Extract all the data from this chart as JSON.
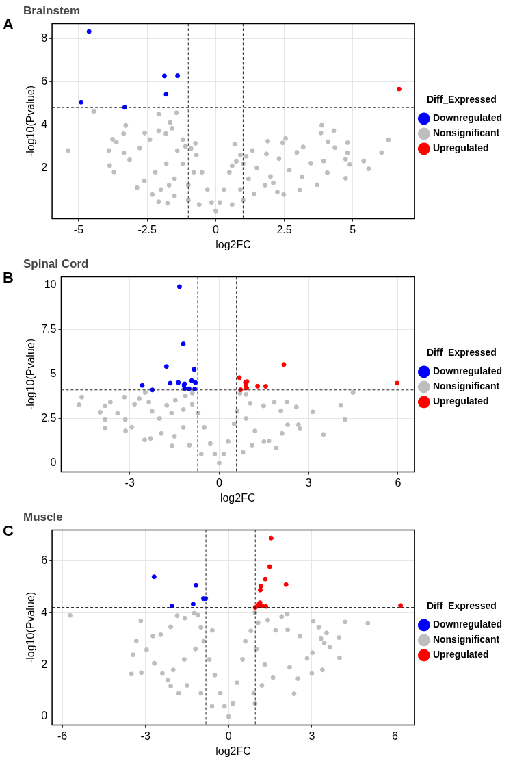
{
  "chart_data": [
    {
      "type": "scatter",
      "title": "Brainstem",
      "annotations": [
        "A"
      ],
      "xlabel": "log2FC",
      "ylabel": "-log10(Pvalue)",
      "legend_title": "Diff_Expressed",
      "legend": "right",
      "grid": true,
      "marker": "circle",
      "xlim": [
        -5.97,
        7.25
      ],
      "ylim": [
        -0.36,
        8.7
      ],
      "xticks": [
        -5,
        -2.5,
        0,
        2.5,
        5
      ],
      "yticks": [
        2,
        4,
        6,
        8
      ],
      "ref_lines": [
        {
          "axis": "x",
          "value": -1,
          "line_style": "dashed"
        },
        {
          "axis": "x",
          "value": 1,
          "line_style": "dashed"
        },
        {
          "axis": "y",
          "value": 4.8,
          "line_style": "dashed"
        }
      ],
      "series": [
        {
          "name": "Downregulated",
          "color": "#0000ff",
          "x": [
            -4.62,
            -4.91,
            -1.87,
            -1.39,
            -1.81,
            -3.32
          ],
          "values": [
            8.33,
            5.05,
            6.27,
            6.28,
            5.41,
            4.81
          ]
        },
        {
          "name": "Nonsignificant",
          "color": "#bebebe",
          "x": [
            -5.38,
            -4.45,
            -3.76,
            -3.62,
            -3.9,
            -3.87,
            -3.71,
            -3.28,
            -3.36,
            -3.35,
            -3.14,
            -2.77,
            -2.59,
            -2.4,
            -2.08,
            -1.43,
            -1.66,
            -1.59,
            -2.08,
            -1.82,
            -1.2,
            -0.74,
            -2.87,
            -2.31,
            -2.08,
            -1.76,
            -2.6,
            -2.2,
            -1.8,
            -1.4,
            -1.1,
            -0.9,
            -0.7,
            -0.5,
            -0.3,
            -0.15,
            0,
            -1.5,
            -1,
            -2,
            -1.5,
            -1,
            -0.6,
            -0.8,
            -1.2,
            -1.7,
            0.15,
            0.3,
            0.5,
            0.6,
            0.75,
            0.69,
            0.9,
            3.87,
            4.31,
            3.84,
            4.1,
            4.81,
            6.3,
            2.55,
            1.9,
            2.44,
            3.19,
            2.96,
            4.35,
            4.81,
            6.05,
            5.4,
            5.58,
            4.74,
            4.89,
            3.94,
            3.47,
            4.07,
            4.74,
            3.7,
            3.06,
            2.48,
            2.25,
            3.15,
            2.69,
            2.31,
            1.85,
            1.34,
            1.11,
            1.5,
            2.0,
            1.0,
            1.2,
            1.8,
            0.9,
            1.4,
            2.1,
            1.0,
            0.6
          ],
          "values": [
            2.81,
            4.62,
            3.33,
            3.19,
            2.81,
            2.11,
            1.81,
            3.97,
            3.59,
            2.7,
            2.38,
            2.92,
            3.62,
            3.32,
            4.49,
            4.56,
            4.11,
            3.84,
            3.73,
            3.59,
            3.32,
            3.14,
            1.08,
            0.76,
            0.43,
            0.36,
            1.4,
            1.8,
            2.2,
            2.8,
            3.0,
            2.9,
            2.6,
            1.8,
            1.0,
            0.4,
            0,
            1.5,
            1.2,
            1.0,
            0.7,
            0.5,
            0.3,
            1.8,
            2.2,
            1.2,
            0.4,
            1.0,
            1.8,
            2.1,
            2.3,
            3.1,
            2.6,
            3.98,
            3.73,
            3.62,
            3.22,
            3.17,
            3.31,
            3.37,
            3.24,
            3.16,
            2.97,
            2.72,
            2.94,
            2.7,
            2.71,
            2.32,
            1.96,
            2.41,
            2.16,
            2.32,
            2.22,
            1.78,
            1.52,
            1.22,
            0.97,
            0.76,
            0.88,
            1.59,
            1.89,
            2.43,
            2.65,
            2.81,
            2.54,
            2.0,
            1.6,
            2.2,
            1.5,
            1.2,
            1.0,
            0.8,
            1.3,
            0.5,
            0.3
          ]
        },
        {
          "name": "Upregulated",
          "color": "#ff0000",
          "x": [
            6.69
          ],
          "values": [
            5.66
          ]
        }
      ]
    },
    {
      "type": "scatter",
      "title": "Spinal Cord",
      "annotations": [
        "B"
      ],
      "xlabel": "log2FC",
      "ylabel": "-log10(Pvalue)",
      "legend_title": "Diff_Expressed",
      "legend": "right",
      "grid": true,
      "marker": "circle",
      "xlim": [
        -5.3,
        6.55
      ],
      "ylim": [
        -0.5,
        10.45
      ],
      "xticks": [
        -3,
        0,
        3,
        6
      ],
      "yticks": [
        0,
        2.5,
        5,
        7.5,
        10
      ],
      "ref_lines": [
        {
          "axis": "x",
          "value": -0.72,
          "line_style": "dashed"
        },
        {
          "axis": "x",
          "value": 0.58,
          "line_style": "dashed"
        },
        {
          "axis": "y",
          "value": 4.1,
          "line_style": "dashed"
        }
      ],
      "series": [
        {
          "name": "Downregulated",
          "color": "#0000ff",
          "x": [
            -1.33,
            -1.2,
            -1.77,
            -0.84,
            -2.58,
            -2.24,
            -1.64,
            -1.37,
            -1.16,
            -1.18,
            -0.92,
            -0.8,
            -1.16,
            -1.01,
            -0.82
          ],
          "values": [
            9.89,
            6.68,
            5.41,
            5.25,
            4.35,
            4.1,
            4.48,
            4.51,
            4.44,
            4.37,
            4.62,
            4.51,
            4.18,
            4.17,
            4.15
          ]
        },
        {
          "name": "Nonsignificant",
          "color": "#bebebe",
          "x": [
            -4.7,
            -4.61,
            -3.99,
            -3.83,
            -3.65,
            -3.83,
            -3.83,
            -3.41,
            -3.18,
            -3.15,
            -3.14,
            -2.93,
            -2.84,
            -2.68,
            -2.48,
            -2.36,
            -2.25,
            -1.76,
            -1.47,
            -1.13,
            -0.9,
            -1.94,
            -2.3,
            -1.58,
            -2.0,
            -1.6,
            -1.2,
            -0.9,
            -0.7,
            -0.5,
            -0.3,
            -0.15,
            0,
            -1.5,
            -1,
            -0.6,
            -2.5,
            -1.2,
            0.7,
            0.9,
            1.04,
            1.49,
            1.85,
            2.07,
            2.27,
            2.59,
            3.14,
            4.08,
            4.22,
            4.49,
            3.5,
            2.66,
            2.71,
            2.3,
            2.11,
            1.92,
            1.67,
            0.3,
            0.5,
            0.6,
            0.9,
            1.2,
            1.5,
            0.8,
            1.1,
            0.15
          ],
          "values": [
            3.27,
            3.7,
            2.85,
            3.21,
            3.41,
            2.44,
            1.94,
            2.79,
            3.7,
            2.44,
            1.8,
            2.01,
            3.3,
            3.61,
            3.96,
            3.42,
            2.9,
            3.24,
            3.52,
            3.77,
            3.92,
            1.66,
            1.38,
            0.96,
            2.5,
            2.8,
            3.0,
            3.3,
            2.8,
            2.0,
            1.1,
            0.5,
            0,
            1.5,
            1.0,
            0.5,
            1.3,
            2.0,
            3.92,
            3.85,
            3.35,
            3.21,
            3.41,
            2.93,
            3.41,
            3.14,
            2.87,
            3.24,
            2.44,
            3.96,
            1.61,
            2.15,
            1.92,
            2.15,
            1.66,
            0.85,
            1.24,
            1.2,
            2.2,
            2.9,
            2.5,
            1.8,
            1.2,
            0.6,
            1.0,
            0.5
          ]
        },
        {
          "name": "Upregulated",
          "color": "#ff0000",
          "x": [
            0.68,
            0.93,
            0.88,
            0.89,
            0.92,
            0.72,
            1.29,
            1.56,
            2.17,
            5.97
          ],
          "values": [
            4.79,
            4.56,
            4.52,
            4.39,
            4.21,
            4.11,
            4.31,
            4.3,
            5.52,
            4.48
          ]
        }
      ]
    },
    {
      "type": "scatter",
      "title": "Muscle",
      "annotations": [
        "C"
      ],
      "xlabel": "log2FC",
      "ylabel": "-log10(Pvalue)",
      "legend_title": "Diff_Expressed",
      "legend": "right",
      "grid": true,
      "marker": "circle",
      "xlim": [
        -6.37,
        6.7
      ],
      "ylim": [
        -0.33,
        7.18
      ],
      "xticks": [
        -6,
        -3,
        0,
        3,
        6
      ],
      "yticks": [
        0,
        2,
        4,
        6
      ],
      "ref_lines": [
        {
          "axis": "x",
          "value": -0.82,
          "line_style": "dashed"
        },
        {
          "axis": "x",
          "value": 0.96,
          "line_style": "dashed"
        },
        {
          "axis": "y",
          "value": 4.2,
          "line_style": "dashed"
        }
      ],
      "series": [
        {
          "name": "Downregulated",
          "color": "#0000ff",
          "x": [
            -2.69,
            -1.18,
            -0.91,
            -0.83,
            -1.28,
            -2.05
          ],
          "values": [
            5.38,
            5.05,
            4.54,
            4.54,
            4.33,
            4.25
          ]
        },
        {
          "name": "Nonsignificant",
          "color": "#bebebe",
          "x": [
            -5.72,
            -3.17,
            -3.33,
            -3.45,
            -2.96,
            -3.51,
            -3.15,
            -2.73,
            -2.45,
            -2.09,
            -1.86,
            -1.58,
            -1.24,
            -1.11,
            -1.0,
            -0.59,
            -2.39,
            -2.09,
            -2.68,
            -2.0,
            -1.6,
            -1.2,
            -0.9,
            -0.7,
            -0.5,
            -0.3,
            -0.15,
            0,
            -1.5,
            -1,
            -0.6,
            -2.2,
            -1.8,
            0.95,
            1.06,
            1.41,
            1.91,
            2.11,
            1.69,
            2.13,
            2.57,
            3.05,
            3.25,
            3.53,
            3.33,
            3.45,
            3.65,
            3.98,
            4.2,
            5.02,
            4.0,
            3.02,
            2.83,
            3.0,
            3.38,
            2.36,
            2.5,
            2.2,
            0.3,
            0.5,
            0.6,
            0.8,
            1.0,
            1.3,
            1.6,
            0.9,
            1.2,
            0.15,
            0.95
          ],
          "values": [
            3.89,
            3.68,
            2.91,
            2.38,
            2.57,
            1.64,
            1.69,
            3.1,
            3.15,
            3.45,
            3.88,
            3.79,
            3.98,
            3.9,
            3.43,
            3.32,
            1.66,
            1.17,
            2.05,
            1.8,
            2.2,
            2.6,
            2.9,
            2.2,
            1.6,
            0.9,
            0.4,
            0,
            1.2,
            0.9,
            0.4,
            1.4,
            0.9,
            4.0,
            3.61,
            3.71,
            3.85,
            3.95,
            3.32,
            3.34,
            3.1,
            3.66,
            3.44,
            3.22,
            3.0,
            2.83,
            2.66,
            3.04,
            3.64,
            3.59,
            2.26,
            2.46,
            2.24,
            1.66,
            1.8,
            0.88,
            1.46,
            1.9,
            1.3,
            2.2,
            2.9,
            3.3,
            2.6,
            2.0,
            1.5,
            0.9,
            1.2,
            0.5,
            0.5
          ]
        },
        {
          "name": "Upregulated",
          "color": "#ff0000",
          "x": [
            1.53,
            1.48,
            1.32,
            2.07,
            1.16,
            1.14,
            1.13,
            1.09,
            1.2,
            1.34,
            1.06,
            0.96,
            6.2
          ],
          "values": [
            6.87,
            5.77,
            5.29,
            5.08,
            5.01,
            4.87,
            4.38,
            4.32,
            4.26,
            4.24,
            4.26,
            4.2,
            4.27
          ]
        }
      ]
    }
  ]
}
